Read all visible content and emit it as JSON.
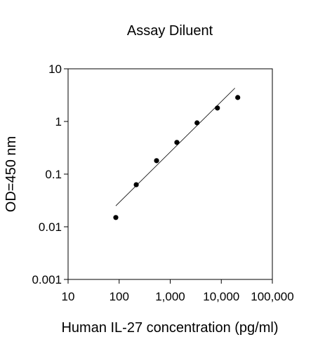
{
  "chart_data": {
    "type": "scatter",
    "title": "Assay Diluent",
    "xlabel": "Human IL-27 concentration (pg/ml)",
    "ylabel": "OD=450 nm",
    "xscale": "log",
    "yscale": "log",
    "xlim": [
      10,
      100000
    ],
    "ylim": [
      0.001,
      10
    ],
    "xticks": [
      10,
      100,
      1000,
      10000,
      100000
    ],
    "xtick_labels": [
      "10",
      "100",
      "1,000",
      "10,000",
      "100,000"
    ],
    "yticks": [
      0.001,
      0.01,
      0.1,
      1,
      10
    ],
    "ytick_labels": [
      "0.001",
      "0.01",
      "0.1",
      "1",
      "10"
    ],
    "grid": false,
    "series": [
      {
        "points": [
          {
            "x": 86,
            "y": 0.015
          },
          {
            "x": 216,
            "y": 0.063
          },
          {
            "x": 540,
            "y": 0.18
          },
          {
            "x": 1350,
            "y": 0.4
          },
          {
            "x": 3350,
            "y": 0.94
          },
          {
            "x": 8400,
            "y": 1.8
          },
          {
            "x": 21000,
            "y": 2.85
          }
        ],
        "trendline": {
          "type": "power",
          "from": {
            "x": 86,
            "y": 0.025
          },
          "to": {
            "x": 18500,
            "y": 4.3
          }
        }
      }
    ]
  }
}
